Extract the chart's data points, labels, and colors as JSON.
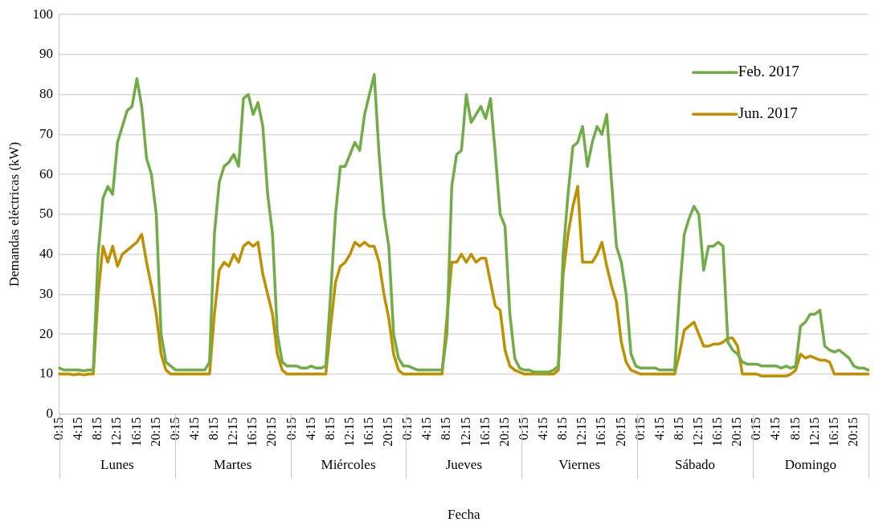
{
  "chart_data": {
    "type": "line",
    "xlabel": "Fecha",
    "ylabel": "Demandas eléctricas (kW)",
    "categories": [
      "0:15",
      null,
      null,
      null,
      "4:15",
      null,
      null,
      null,
      "8:15",
      null,
      null,
      null,
      "12:15",
      null,
      null,
      null,
      "16:15",
      null,
      null,
      null,
      "20:15",
      null,
      null,
      null,
      "0:15",
      null,
      null,
      null,
      "4:15",
      null,
      null,
      null,
      "8:15",
      null,
      null,
      null,
      "12:15",
      null,
      null,
      null,
      "16:15",
      null,
      null,
      null,
      "20:15",
      null,
      null,
      null,
      "0:15",
      null,
      null,
      null,
      "4:15",
      null,
      null,
      null,
      "8:15",
      null,
      null,
      null,
      "12:15",
      null,
      null,
      null,
      "16:15",
      null,
      null,
      null,
      "20:15",
      null,
      null,
      null,
      "0:15",
      null,
      null,
      null,
      "4:15",
      null,
      null,
      null,
      "8:15",
      null,
      null,
      null,
      "12:15",
      null,
      null,
      null,
      "16:15",
      null,
      null,
      null,
      "20:15",
      null,
      null,
      null,
      "0:15",
      null,
      null,
      null,
      "4:15",
      null,
      null,
      null,
      "8:15",
      null,
      null,
      null,
      "12:15",
      null,
      null,
      null,
      "16:15",
      null,
      null,
      null,
      "20:15",
      null,
      null,
      null,
      "0:15",
      null,
      null,
      null,
      "4:15",
      null,
      null,
      null,
      "8:15",
      null,
      null,
      null,
      "12:15",
      null,
      null,
      null,
      "16:15",
      null,
      null,
      null,
      "20:15",
      null,
      null,
      null,
      "0:15",
      null,
      null,
      null,
      "4:15",
      null,
      null,
      null,
      "8:15",
      null,
      null,
      null,
      "12:15",
      null,
      null,
      null,
      "16:15",
      null,
      null,
      null,
      "20:15",
      null,
      null,
      null
    ],
    "series": [
      {
        "name": "Feb. 2017",
        "color": "#70ad47",
        "values": [
          11.5,
          11,
          11,
          11,
          11,
          10.8,
          11,
          11,
          40,
          54,
          57,
          55,
          68,
          72,
          76,
          77,
          84,
          77,
          64,
          60,
          50,
          20,
          13,
          12,
          11,
          11,
          11,
          11,
          11,
          11,
          11,
          13,
          45,
          58,
          62,
          63,
          65,
          62,
          79,
          80,
          75,
          78,
          72,
          55,
          45,
          20,
          13,
          12,
          12,
          12,
          11.5,
          11.5,
          12,
          11.5,
          11.5,
          12,
          30,
          50,
          62,
          62,
          65,
          68,
          66,
          75,
          80,
          85,
          65,
          50,
          42,
          20,
          14,
          12,
          12,
          11.5,
          11,
          11,
          11,
          11,
          11,
          11,
          20,
          57,
          65,
          66,
          80,
          73,
          75,
          77,
          74,
          79,
          65,
          50,
          47,
          25,
          14,
          11.5,
          11,
          11,
          10.5,
          10.5,
          10.5,
          10.5,
          11,
          12,
          40,
          55,
          67,
          68,
          72,
          62,
          68,
          72,
          70,
          75,
          58,
          42,
          38,
          30,
          15,
          12,
          11.5,
          11.5,
          11.5,
          11.5,
          11,
          11,
          11,
          11,
          30,
          45,
          49,
          52,
          50,
          36,
          42,
          42,
          43,
          42,
          18,
          16,
          15,
          13,
          12.5,
          12.5,
          12.5,
          12,
          12,
          12,
          12,
          11.5,
          12,
          11.5,
          12,
          22,
          23,
          25,
          25,
          26,
          17,
          16,
          15.5,
          16,
          15,
          14,
          12,
          11.5,
          11.5,
          11
        ]
      },
      {
        "name": "Jun. 2017",
        "color": "#bf9000",
        "values": [
          10,
          10,
          10,
          9.8,
          10,
          9.8,
          10,
          10,
          30,
          42,
          38,
          42,
          37,
          40,
          41,
          42,
          43,
          45,
          38,
          32,
          25,
          15,
          11,
          10,
          10,
          10,
          10,
          10,
          10,
          10,
          10,
          10,
          25,
          36,
          38,
          37,
          40,
          38,
          42,
          43,
          42,
          43,
          35,
          30,
          25,
          15,
          11,
          10,
          10,
          10,
          10,
          10,
          10,
          10,
          10,
          10,
          22,
          33,
          37,
          38,
          40,
          43,
          42,
          43,
          42,
          42,
          38,
          30,
          24,
          15,
          11,
          10,
          10,
          10,
          10,
          10,
          10,
          10,
          10,
          10,
          24,
          38,
          38,
          40,
          38,
          40,
          38,
          39,
          39,
          33,
          27,
          26,
          16,
          12,
          11,
          10.5,
          10,
          10,
          10,
          10,
          10,
          10,
          10,
          11,
          35,
          45,
          52,
          57,
          38,
          38,
          38,
          40,
          43,
          37,
          32,
          28,
          18,
          13,
          11,
          10.5,
          10,
          10,
          10,
          10,
          10,
          10,
          10,
          10,
          15,
          21,
          22,
          23,
          20,
          17,
          17,
          17.5,
          17.5,
          18,
          19,
          19,
          17,
          10,
          10,
          10,
          10,
          9.5,
          9.5,
          9.5,
          9.5,
          9.5,
          9.5,
          10,
          11,
          15,
          14,
          14.5,
          14,
          13.5,
          13.5,
          13,
          10,
          10,
          10,
          10,
          10,
          10,
          10,
          10
        ]
      }
    ],
    "ylim": [
      0,
      100
    ],
    "yticks": [
      0,
      10,
      20,
      30,
      40,
      50,
      60,
      70,
      80,
      90,
      100
    ],
    "grid": "y",
    "legend": "top right",
    "annotations": [
      "Lunes",
      "Martes",
      "Miércoles",
      "Jueves",
      "Viernes",
      "Sábado",
      "Domingo"
    ]
  }
}
